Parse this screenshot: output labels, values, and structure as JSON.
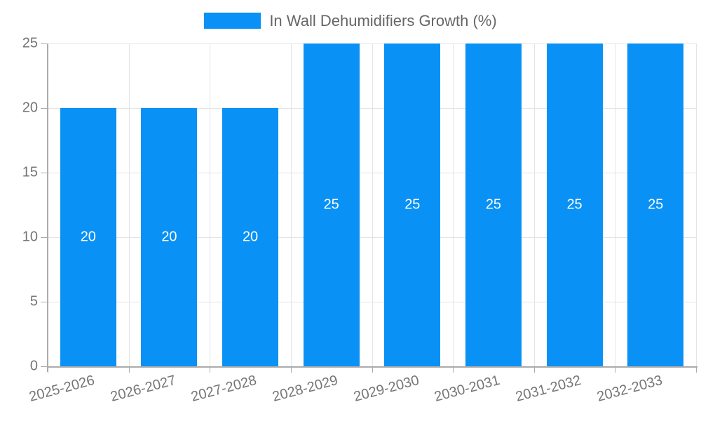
{
  "chart_data": {
    "type": "bar",
    "title": "In Wall Dehumidifiers Growth (%)",
    "legend": {
      "label": "In Wall Dehumidifiers Growth (%)",
      "position": "top"
    },
    "categories": [
      "2025-2026",
      "2026-2027",
      "2027-2028",
      "2028-2029",
      "2029-2030",
      "2030-2031",
      "2031-2032",
      "2032-2033"
    ],
    "values": [
      20,
      20,
      20,
      25,
      25,
      25,
      25,
      25
    ],
    "data_labels": [
      "20",
      "20",
      "20",
      "25",
      "25",
      "25",
      "25",
      "25"
    ],
    "xlabel": "",
    "ylabel": "",
    "ylim": [
      0,
      25
    ],
    "yticks": [
      0,
      5,
      10,
      15,
      20,
      25
    ],
    "grid": true,
    "x_label_rotation_deg": -15,
    "colors": {
      "bar": "#0991f5",
      "grid": "#e4e4e4",
      "axis": "#ababab",
      "tick_text": "#757575",
      "legend_text": "#666666",
      "bar_value_text": "#ffffff",
      "background": "#ffffff"
    }
  }
}
